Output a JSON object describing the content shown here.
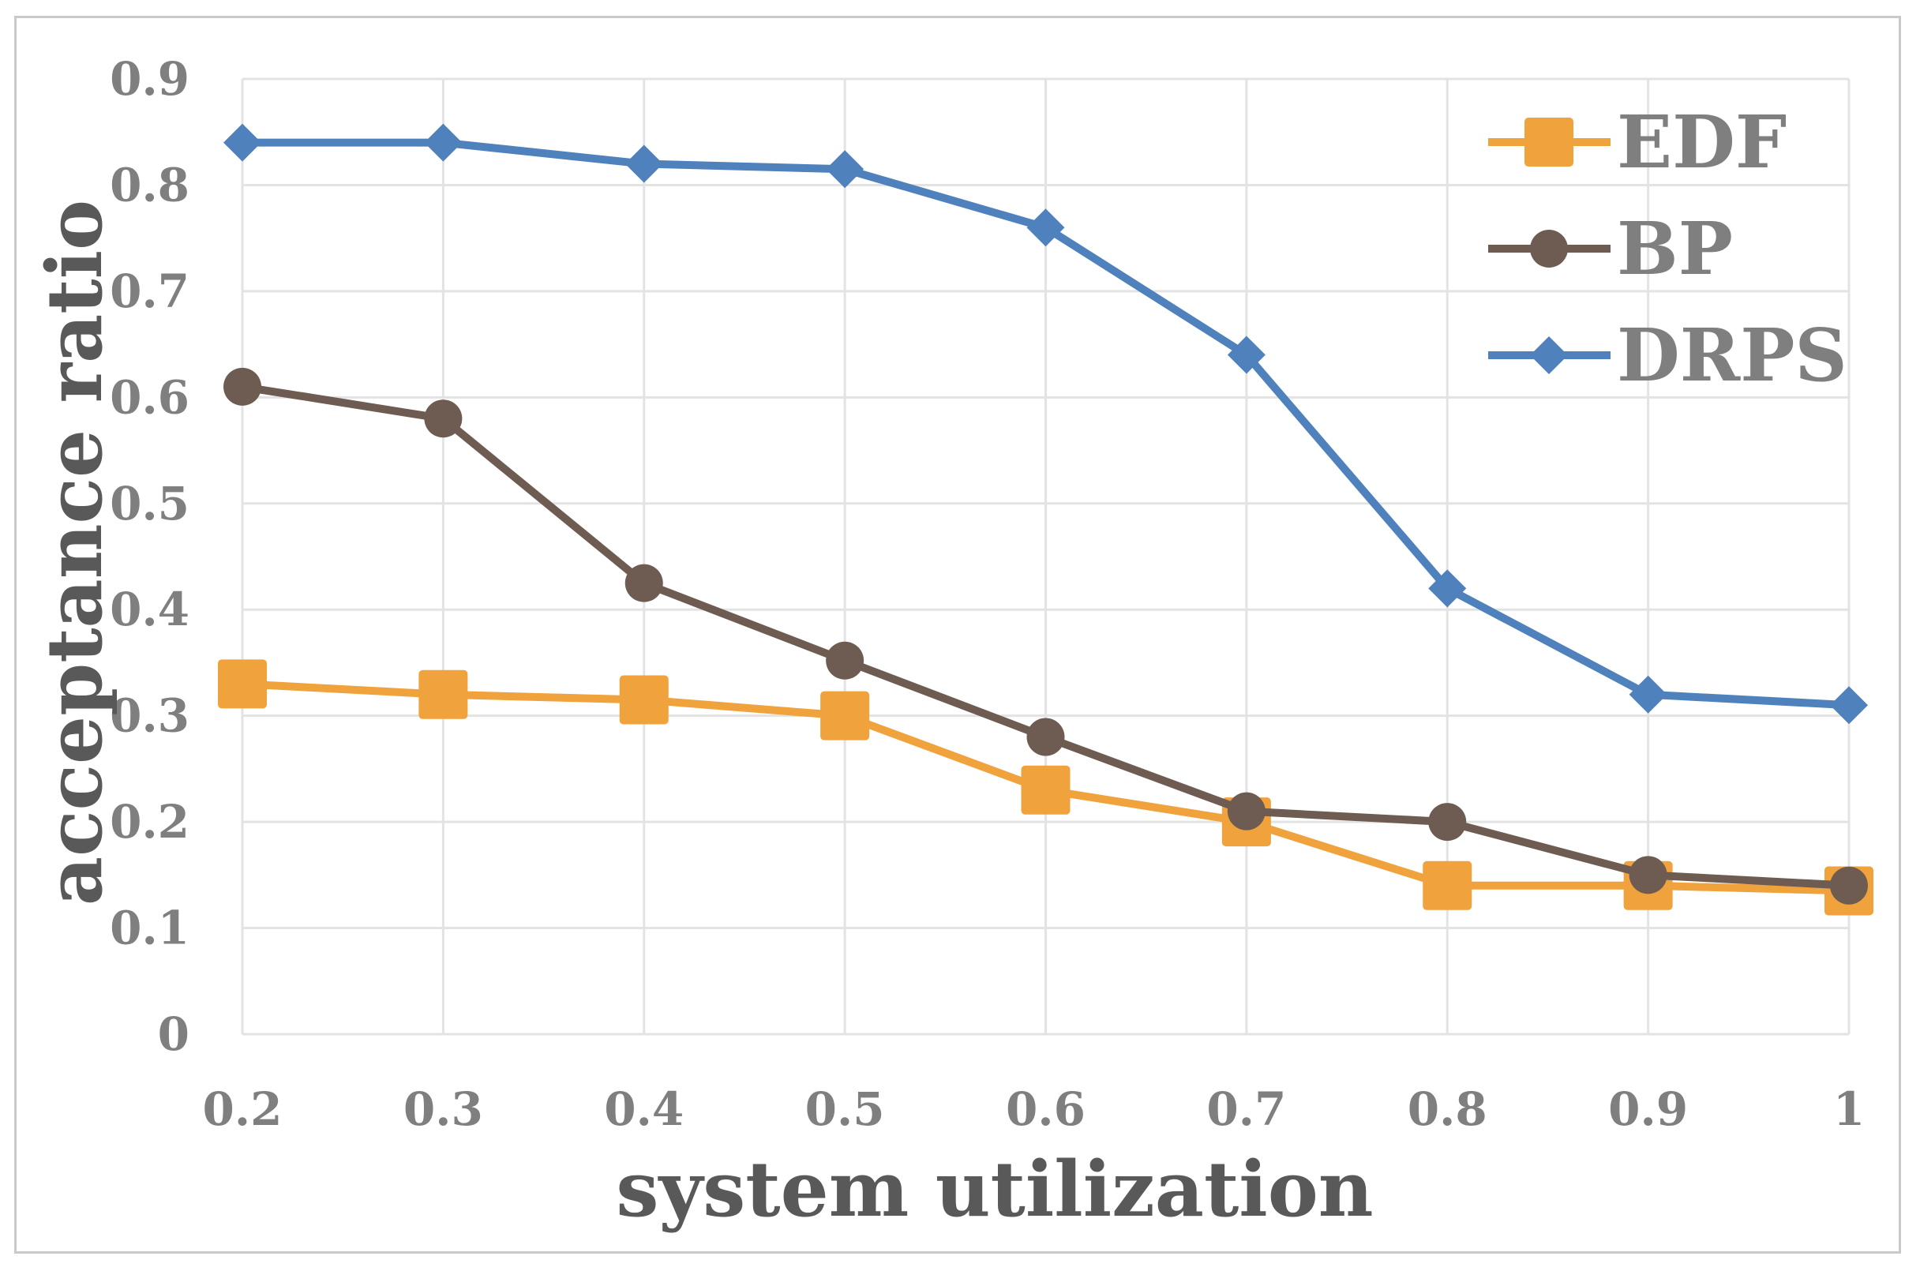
{
  "chart_data": {
    "type": "line",
    "title": "",
    "xlabel": "system utilization",
    "ylabel": "acceptance ratio",
    "x": [
      0.2,
      0.3,
      0.4,
      0.5,
      0.6,
      0.7,
      0.8,
      0.9,
      1
    ],
    "x_tick_labels": [
      "0.2",
      "0.3",
      "0.4",
      "0.5",
      "0.6",
      "0.7",
      "0.8",
      "0.9",
      "1"
    ],
    "y_ticks": [
      0,
      0.1,
      0.2,
      0.3,
      0.4,
      0.5,
      0.6,
      0.7,
      0.8,
      0.9
    ],
    "y_tick_labels": [
      "0",
      "0.1",
      "0.2",
      "0.3",
      "0.4",
      "0.5",
      "0.6",
      "0.7",
      "0.8",
      "0.9"
    ],
    "ylim": [
      0,
      0.9
    ],
    "grid": true,
    "legend_position": "top-right",
    "series": [
      {
        "name": "EDF",
        "color": "#f0a23c",
        "marker": "square",
        "values": [
          0.33,
          0.32,
          0.315,
          0.3,
          0.23,
          0.2,
          0.14,
          0.14,
          0.135
        ]
      },
      {
        "name": "BP",
        "color": "#6e5c52",
        "marker": "circle",
        "values": [
          0.61,
          0.58,
          0.425,
          0.352,
          0.28,
          0.21,
          0.2,
          0.15,
          0.14
        ]
      },
      {
        "name": "DRPS",
        "color": "#4f81bd",
        "marker": "diamond",
        "values": [
          0.84,
          0.84,
          0.82,
          0.815,
          0.76,
          0.64,
          0.42,
          0.32,
          0.31
        ]
      }
    ]
  }
}
